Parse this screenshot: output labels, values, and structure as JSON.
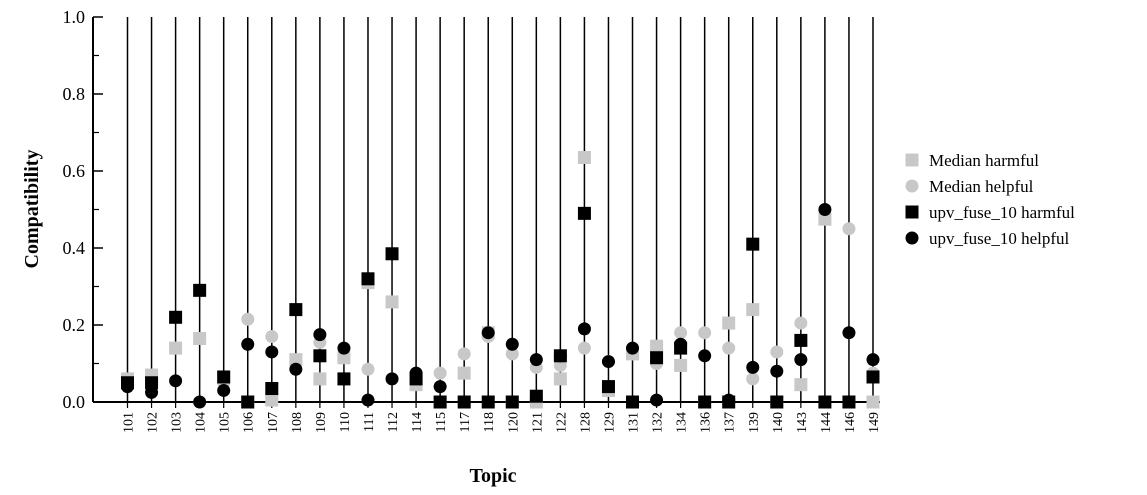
{
  "chart_data": {
    "type": "scatter",
    "xlabel": "Topic",
    "ylabel": "Compatibility",
    "ylim": [
      0.0,
      1.0
    ],
    "yticks": [
      "0.0",
      "0.2",
      "0.4",
      "0.6",
      "0.8",
      "1.0"
    ],
    "categories": [
      "101",
      "102",
      "103",
      "104",
      "105",
      "106",
      "107",
      "108",
      "109",
      "110",
      "111",
      "112",
      "114",
      "115",
      "117",
      "118",
      "120",
      "121",
      "122",
      "128",
      "129",
      "131",
      "132",
      "134",
      "136",
      "137",
      "139",
      "140",
      "143",
      "144",
      "146",
      "149"
    ],
    "series": [
      {
        "name": "Median harmful",
        "marker": "square",
        "color": "#c8c8c8",
        "values": [
          0.06,
          0.07,
          0.14,
          0.165,
          0.065,
          0.0,
          0.005,
          0.11,
          0.06,
          0.115,
          0.31,
          0.26,
          0.045,
          0.0,
          0.075,
          0.18,
          0.0,
          0.0,
          0.06,
          0.635,
          0.03,
          0.125,
          0.145,
          0.095,
          0.0,
          0.205,
          0.24,
          0.0,
          0.045,
          0.475,
          0.0,
          0.0
        ]
      },
      {
        "name": "Median helpful",
        "marker": "circle",
        "color": "#c8c8c8",
        "values": [
          0.05,
          0.05,
          0.14,
          0.0,
          0.05,
          0.215,
          0.17,
          0.105,
          0.155,
          0.125,
          0.085,
          0.06,
          0.07,
          0.075,
          0.125,
          0.17,
          0.125,
          0.09,
          0.095,
          0.14,
          0.105,
          0.125,
          0.1,
          0.18,
          0.18,
          0.14,
          0.06,
          0.13,
          0.205,
          0.475,
          0.45,
          0.075
        ]
      },
      {
        "name": "upv_fuse_10 harmful",
        "marker": "square",
        "color": "#000000",
        "values": [
          0.05,
          0.05,
          0.22,
          0.29,
          0.065,
          0.0,
          0.035,
          0.24,
          0.12,
          0.06,
          0.32,
          0.385,
          0.06,
          0.0,
          0.0,
          0.0,
          0.0,
          0.015,
          0.12,
          0.49,
          0.04,
          0.0,
          0.115,
          0.14,
          0.0,
          0.0,
          0.41,
          0.0,
          0.16,
          0.0,
          0.0,
          0.065
        ]
      },
      {
        "name": "upv_fuse_10 helpful",
        "marker": "circle",
        "color": "#000000",
        "values": [
          0.04,
          0.025,
          0.055,
          0.0,
          0.03,
          0.15,
          0.13,
          0.085,
          0.175,
          0.14,
          0.005,
          0.06,
          0.075,
          0.04,
          0.0,
          0.18,
          0.15,
          0.11,
          0.12,
          0.19,
          0.105,
          0.14,
          0.005,
          0.15,
          0.12,
          0.005,
          0.09,
          0.08,
          0.11,
          0.5,
          0.18,
          0.11
        ]
      }
    ],
    "grid": false,
    "legend_position": "right"
  }
}
